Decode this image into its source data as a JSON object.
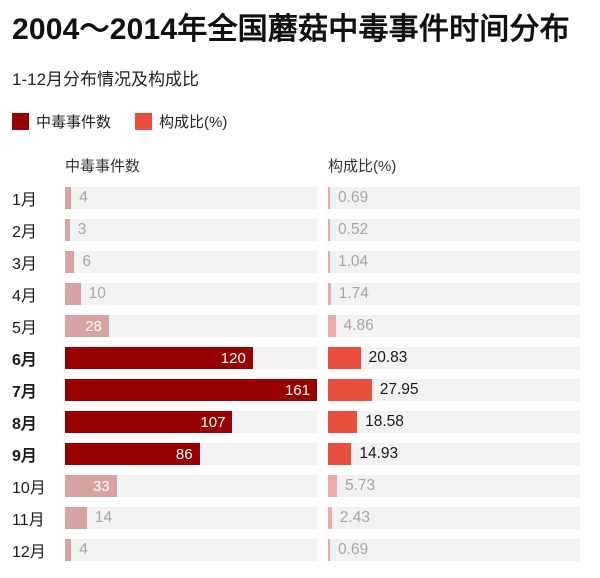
{
  "title": "2004～2014年全国蘑菇中毒事件时间分布",
  "subtitle": "1-12月分布情况及构成比",
  "legend": [
    {
      "label": "中毒事件数",
      "color": "#990000"
    },
    {
      "label": "构成比(%)",
      "color": "#e94f3c"
    }
  ],
  "column_headers": {
    "left": "中毒事件数",
    "right": "构成比(%)"
  },
  "chart_data": {
    "type": "bar",
    "orientation": "horizontal",
    "title": "2004～2014年全国蘑菇中毒事件时间分布",
    "subtitle": "1-12月分布情况及构成比",
    "categories": [
      "1月",
      "2月",
      "3月",
      "4月",
      "5月",
      "6月",
      "7月",
      "8月",
      "9月",
      "10月",
      "11月",
      "12月"
    ],
    "series": [
      {
        "name": "中毒事件数",
        "values": [
          4,
          3,
          6,
          10,
          28,
          120,
          161,
          107,
          86,
          33,
          14,
          4
        ]
      },
      {
        "name": "构成比(%)",
        "values": [
          0.69,
          0.52,
          1.04,
          1.74,
          4.86,
          20.83,
          27.95,
          18.58,
          14.93,
          5.73,
          2.43,
          0.69
        ]
      }
    ],
    "scale_max": 161,
    "highlight_months": [
      "6月",
      "7月",
      "8月",
      "9月"
    ],
    "legend_position": "top",
    "grid": false
  },
  "colors": {
    "events_bar": "#990000",
    "events_bar_muted": "#d6a3a1",
    "ratio_bar": "#e94f3c",
    "ratio_bar_muted": "#eeaaa4",
    "track": "#f2f2f2",
    "value_muted": "#a5a5a5",
    "value_strong": "#1a1a1a"
  }
}
